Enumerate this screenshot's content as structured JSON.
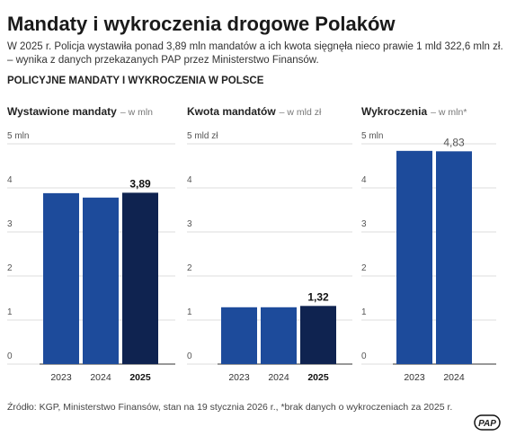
{
  "title": "Mandaty i wykroczenia drogowe Polaków",
  "subtitle": [
    "W 2025 r. Policja wystawiła ponad 3,89 mln mandatów a ich kwota sięgnęła nieco prawie 1 mld 322,6 mln zł.",
    "– wynika z danych przekazanych PAP przez Ministerstwo Finansów."
  ],
  "section_title": "POLICYJNE MANDATY I WYKROCZENIA W POLSCE",
  "source": "Źródło: KGP, Ministerstwo Finansów, stan na 19 stycznia 2026 r., *brak danych o wykroczeniach za 2025 r.",
  "logo": "PAP",
  "chart_data": [
    {
      "type": "bar",
      "title": "Wystawione mandaty",
      "subtitle": "– w mln",
      "categories": [
        "2023",
        "2024",
        "2025"
      ],
      "values": [
        3.88,
        3.78,
        3.89
      ],
      "value_labels": [
        null,
        null,
        "3,89"
      ],
      "colors": [
        "#1d4b9b",
        "#1d4b9b",
        "#0f2350"
      ],
      "ylim": [
        0,
        5
      ],
      "yticks": [
        0,
        1,
        2,
        3,
        4,
        {
          "value": 5,
          "label": "5 mln"
        }
      ],
      "grid": true
    },
    {
      "type": "bar",
      "title": "Kwota mandatów",
      "subtitle": "– w mld zł",
      "categories": [
        "2023",
        "2024",
        "2025"
      ],
      "values": [
        1.29,
        1.29,
        1.32
      ],
      "value_labels": [
        null,
        null,
        "1,32"
      ],
      "colors": [
        "#1d4b9b",
        "#1d4b9b",
        "#0f2350"
      ],
      "ylim": [
        0,
        5
      ],
      "yticks": [
        0,
        1,
        2,
        3,
        4,
        {
          "value": 5,
          "label": "5 mld zł"
        }
      ],
      "grid": true
    },
    {
      "type": "bar",
      "title": "Wykroczenia",
      "subtitle": "– w mln*",
      "categories": [
        "2023",
        "2024"
      ],
      "values": [
        4.84,
        4.83
      ],
      "value_labels": [
        null,
        "4,83"
      ],
      "colors": [
        "#1d4b9b",
        "#1d4b9b"
      ],
      "ylim": [
        0,
        5
      ],
      "yticks": [
        0,
        1,
        2,
        3,
        4,
        {
          "value": 5,
          "label": "5 mln"
        }
      ],
      "grid": true
    }
  ]
}
